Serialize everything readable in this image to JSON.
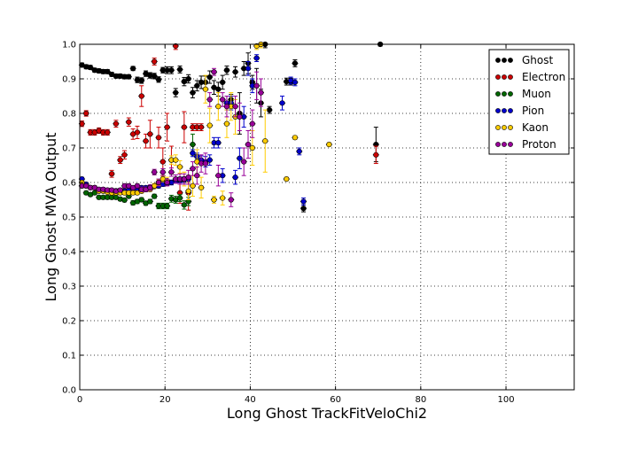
{
  "chart_data": {
    "type": "scatter",
    "title": "",
    "xlabel": "Long Ghost TrackFitVeloChi2",
    "ylabel": "Long Ghost MVA Output",
    "xlim": [
      0,
      116
    ],
    "ylim": [
      0,
      1
    ],
    "x_ticks": [
      "0",
      "20",
      "40",
      "60",
      "80",
      "100"
    ],
    "y_ticks": [
      "0.0",
      "0.1",
      "0.2",
      "0.3",
      "0.4",
      "0.5",
      "0.6",
      "0.7",
      "0.8",
      "0.9",
      "1.0"
    ],
    "grid": "dotted",
    "legend_position": "top-right",
    "series": [
      {
        "name": "Ghost",
        "color": "#000000",
        "x": [
          0.5,
          1.5,
          2.5,
          3.5,
          4.5,
          5.5,
          6.5,
          7.5,
          8.5,
          9.5,
          10.5,
          11.5,
          12.5,
          13.5,
          14.5,
          15.5,
          16.5,
          17.5,
          18.5,
          19.5,
          20.5,
          21.5,
          22.5,
          23.5,
          24.5,
          25.5,
          26.5,
          27.5,
          28.5,
          29.5,
          30.5,
          31.5,
          32.5,
          33.5,
          34.5,
          35.5,
          36.5,
          37.5,
          38.5,
          39.5,
          40.5,
          41.5,
          42.5,
          43.5,
          44.5,
          48.5,
          49.5,
          50.5,
          52.5,
          69.5,
          70.5
        ],
        "y": [
          0.94,
          0.935,
          0.933,
          0.925,
          0.923,
          0.921,
          0.921,
          0.913,
          0.908,
          0.908,
          0.906,
          0.906,
          0.93,
          0.897,
          0.895,
          0.915,
          0.91,
          0.908,
          0.898,
          0.925,
          0.925,
          0.925,
          0.86,
          0.927,
          0.892,
          0.9,
          0.86,
          0.88,
          0.89,
          0.89,
          0.905,
          0.875,
          0.87,
          0.89,
          0.925,
          0.84,
          0.92,
          0.8,
          0.93,
          0.945,
          0.89,
          0.88,
          0.83,
          1.0,
          0.81,
          0.892,
          0.892,
          0.945,
          0.525,
          0.71,
          1.0
        ],
        "err": [
          0.006,
          0.006,
          0.006,
          0.006,
          0.006,
          0.006,
          0.006,
          0.006,
          0.006,
          0.006,
          0.006,
          0.006,
          0.006,
          0.008,
          0.008,
          0.008,
          0.008,
          0.008,
          0.008,
          0.008,
          0.01,
          0.01,
          0.012,
          0.01,
          0.012,
          0.012,
          0.015,
          0.015,
          0.018,
          0.018,
          0.018,
          0.02,
          0.02,
          0.02,
          0.012,
          0.015,
          0.015,
          0.06,
          0.02,
          0.03,
          0.02,
          0.05,
          0.04,
          0.01,
          0.01,
          0.01,
          0.01,
          0.01,
          0.01,
          0.05,
          0.005
        ]
      },
      {
        "name": "Electron",
        "color": "#cc0000",
        "x": [
          0.5,
          1.5,
          2.5,
          3.5,
          4.5,
          5.5,
          6.5,
          7.5,
          8.5,
          9.5,
          10.5,
          11.5,
          12.5,
          13.5,
          14.5,
          15.5,
          16.5,
          17.5,
          18.5,
          19.5,
          20.5,
          21.5,
          22.5,
          23.5,
          24.5,
          25.5,
          26.5,
          27.5,
          28.5,
          69.5
        ],
        "y": [
          0.77,
          0.8,
          0.745,
          0.745,
          0.75,
          0.745,
          0.745,
          0.625,
          0.77,
          0.665,
          0.68,
          0.775,
          0.74,
          0.745,
          0.85,
          0.72,
          0.74,
          0.95,
          0.73,
          0.66,
          0.76,
          0.665,
          0.995,
          0.57,
          0.76,
          0.57,
          0.76,
          0.76,
          0.76,
          0.68
        ],
        "err": [
          0.008,
          0.008,
          0.008,
          0.008,
          0.008,
          0.008,
          0.008,
          0.01,
          0.01,
          0.01,
          0.012,
          0.012,
          0.015,
          0.018,
          0.03,
          0.02,
          0.04,
          0.01,
          0.03,
          0.04,
          0.04,
          0.04,
          0.01,
          0.03,
          0.045,
          0.05,
          0.01,
          0.01,
          0.01,
          0.025
        ]
      },
      {
        "name": "Muon",
        "color": "#006600",
        "x": [
          0.5,
          1.5,
          2.5,
          3.5,
          4.5,
          5.5,
          6.5,
          7.5,
          8.5,
          9.5,
          10.5,
          11.5,
          12.5,
          13.5,
          14.5,
          15.5,
          16.5,
          17.5,
          18.5,
          19.5,
          20.5,
          21.5,
          22.5,
          23.5,
          24.5,
          25.5,
          26.5
        ],
        "y": [
          0.59,
          0.57,
          0.565,
          0.57,
          0.557,
          0.557,
          0.557,
          0.557,
          0.557,
          0.552,
          0.549,
          0.56,
          0.541,
          0.545,
          0.55,
          0.54,
          0.545,
          0.56,
          0.532,
          0.532,
          0.532,
          0.553,
          0.55,
          0.555,
          0.535,
          0.545,
          0.71
        ],
        "err": [
          0.005,
          0.005,
          0.005,
          0.005,
          0.005,
          0.005,
          0.005,
          0.005,
          0.005,
          0.005,
          0.005,
          0.005,
          0.006,
          0.006,
          0.006,
          0.006,
          0.006,
          0.006,
          0.008,
          0.008,
          0.008,
          0.01,
          0.01,
          0.01,
          0.012,
          0.012,
          0.03
        ]
      },
      {
        "name": "Pion",
        "color": "#0000cc",
        "x": [
          0.5,
          1.5,
          2.5,
          3.5,
          4.5,
          5.5,
          6.5,
          7.5,
          8.5,
          9.5,
          10.5,
          11.5,
          12.5,
          13.5,
          14.5,
          15.5,
          16.5,
          17.5,
          18.5,
          19.5,
          20.5,
          21.5,
          22.5,
          23.5,
          24.5,
          25.5,
          26.5,
          27.5,
          28.5,
          29.5,
          30.5,
          31.5,
          32.5,
          33.5,
          34.5,
          35.5,
          36.5,
          37.5,
          38.5,
          39.5,
          40.5,
          41.5,
          47.5,
          49.5,
          50.5,
          51.5,
          52.5
        ],
        "y": [
          0.61,
          0.595,
          0.585,
          0.585,
          0.58,
          0.58,
          0.578,
          0.576,
          0.576,
          0.576,
          0.575,
          0.578,
          0.58,
          0.583,
          0.585,
          0.585,
          0.587,
          0.588,
          0.59,
          0.595,
          0.597,
          0.6,
          0.605,
          0.607,
          0.608,
          0.61,
          0.685,
          0.675,
          0.665,
          0.66,
          0.665,
          0.715,
          0.715,
          0.62,
          0.83,
          0.83,
          0.615,
          0.67,
          0.79,
          0.93,
          0.88,
          0.96,
          0.83,
          0.895,
          0.89,
          0.69,
          0.545
        ],
        "err": [
          0.005,
          0.005,
          0.005,
          0.005,
          0.005,
          0.005,
          0.005,
          0.005,
          0.005,
          0.005,
          0.005,
          0.005,
          0.005,
          0.005,
          0.005,
          0.005,
          0.005,
          0.005,
          0.006,
          0.006,
          0.006,
          0.007,
          0.007,
          0.008,
          0.008,
          0.009,
          0.01,
          0.01,
          0.012,
          0.015,
          0.015,
          0.015,
          0.015,
          0.02,
          0.02,
          0.02,
          0.02,
          0.03,
          0.03,
          0.02,
          0.02,
          0.01,
          0.02,
          0.01,
          0.01,
          0.01,
          0.01
        ]
      },
      {
        "name": "Kaon",
        "color": "#ffcc00",
        "x": [
          0.5,
          1.5,
          2.5,
          3.5,
          4.5,
          5.5,
          6.5,
          7.5,
          8.5,
          9.5,
          10.5,
          11.5,
          12.5,
          13.5,
          14.5,
          15.5,
          16.5,
          17.5,
          18.5,
          19.5,
          20.5,
          21.5,
          22.5,
          23.5,
          24.5,
          25.5,
          26.5,
          27.5,
          28.5,
          29.5,
          30.5,
          31.5,
          32.5,
          33.5,
          34.5,
          35.5,
          36.5,
          40.5,
          41.5,
          42.5,
          43.5,
          48.5,
          50.5,
          58.5
        ],
        "y": [
          0.6,
          0.59,
          0.585,
          0.585,
          0.575,
          0.575,
          0.572,
          0.57,
          0.57,
          0.57,
          0.57,
          0.57,
          0.57,
          0.57,
          0.575,
          0.58,
          0.58,
          0.59,
          0.6,
          0.61,
          0.605,
          0.665,
          0.665,
          0.645,
          0.61,
          0.575,
          0.59,
          0.66,
          0.585,
          0.87,
          0.765,
          0.55,
          0.82,
          0.555,
          0.77,
          0.82,
          0.79,
          0.7,
          0.995,
          1.0,
          0.72,
          0.61,
          0.73,
          0.71
        ],
        "err": [
          0.005,
          0.005,
          0.005,
          0.005,
          0.005,
          0.005,
          0.005,
          0.005,
          0.005,
          0.005,
          0.005,
          0.005,
          0.005,
          0.005,
          0.006,
          0.006,
          0.006,
          0.007,
          0.008,
          0.008,
          0.01,
          0.012,
          0.015,
          0.018,
          0.02,
          0.025,
          0.03,
          0.035,
          0.03,
          0.04,
          0.05,
          0.01,
          0.04,
          0.02,
          0.04,
          0.04,
          0.05,
          0.05,
          0.01,
          0.01,
          0.09,
          0.005,
          0.005,
          0.005
        ]
      },
      {
        "name": "Proton",
        "color": "#990099",
        "x": [
          0.5,
          1.5,
          2.5,
          3.5,
          4.5,
          5.5,
          6.5,
          7.5,
          8.5,
          9.5,
          10.5,
          11.5,
          12.5,
          13.5,
          14.5,
          15.5,
          16.5,
          17.5,
          18.5,
          19.5,
          20.5,
          21.5,
          22.5,
          23.5,
          24.5,
          25.5,
          26.5,
          27.5,
          28.5,
          29.5,
          30.5,
          31.5,
          32.5,
          33.5,
          34.5,
          35.5,
          36.5,
          37.5,
          38.5,
          39.5,
          40.5,
          41.5,
          42.5
        ],
        "y": [
          0.59,
          0.59,
          0.585,
          0.585,
          0.58,
          0.58,
          0.578,
          0.578,
          0.575,
          0.578,
          0.59,
          0.59,
          0.585,
          0.59,
          0.58,
          0.58,
          0.585,
          0.63,
          0.6,
          0.63,
          0.6,
          0.63,
          0.61,
          0.61,
          0.61,
          0.615,
          0.64,
          0.62,
          0.655,
          0.655,
          0.84,
          0.92,
          0.62,
          0.84,
          0.82,
          0.55,
          0.82,
          0.79,
          0.66,
          0.71,
          0.77,
          0.88,
          0.86
        ],
        "err": [
          0.005,
          0.005,
          0.005,
          0.005,
          0.005,
          0.005,
          0.005,
          0.005,
          0.005,
          0.005,
          0.006,
          0.006,
          0.006,
          0.006,
          0.007,
          0.007,
          0.008,
          0.008,
          0.01,
          0.01,
          0.01,
          0.012,
          0.012,
          0.015,
          0.015,
          0.02,
          0.02,
          0.025,
          0.025,
          0.03,
          0.02,
          0.01,
          0.03,
          0.02,
          0.03,
          0.02,
          0.03,
          0.04,
          0.04,
          0.04,
          0.04,
          0.04,
          0.04
        ]
      }
    ]
  }
}
